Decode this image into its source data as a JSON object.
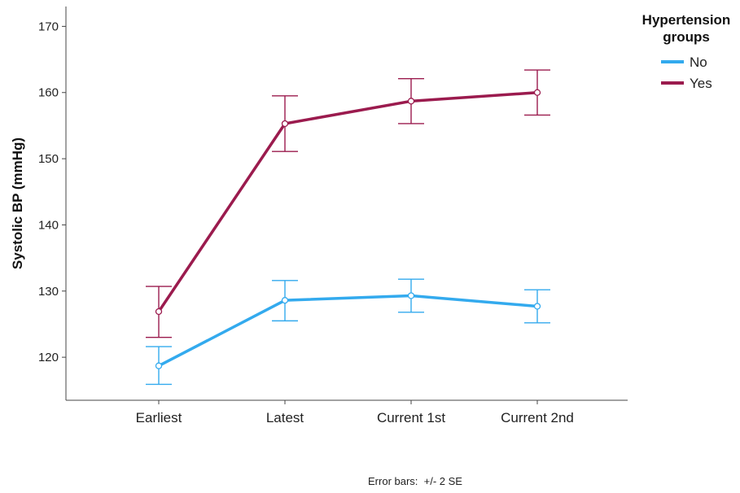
{
  "chart_data": {
    "type": "line",
    "title": "",
    "xlabel": "",
    "ylabel": "Systolic BP (mmHg)",
    "categories": [
      "Earliest",
      "Latest",
      "Current 1st",
      "Current 2nd"
    ],
    "ylim": [
      113.5,
      173
    ],
    "yticks": [
      120,
      130,
      140,
      150,
      160,
      170
    ],
    "grid": false,
    "legend": {
      "title_line1": "Hypertension",
      "title_line2": "groups",
      "placement": "top-right"
    },
    "series": [
      {
        "name": "No",
        "color": "#33aaee",
        "values": [
          118.7,
          128.6,
          129.3,
          127.7
        ],
        "error_low": [
          115.9,
          125.5,
          126.8,
          125.2
        ],
        "error_high": [
          121.6,
          131.6,
          131.8,
          130.2
        ]
      },
      {
        "name": "Yes",
        "color": "#9b1b4e",
        "values": [
          126.9,
          155.3,
          158.7,
          160.0
        ],
        "error_low": [
          123.0,
          151.1,
          155.3,
          156.6
        ],
        "error_high": [
          130.7,
          159.5,
          162.1,
          163.4
        ]
      }
    ],
    "note": "Error bars:  +/- 2 SE"
  }
}
